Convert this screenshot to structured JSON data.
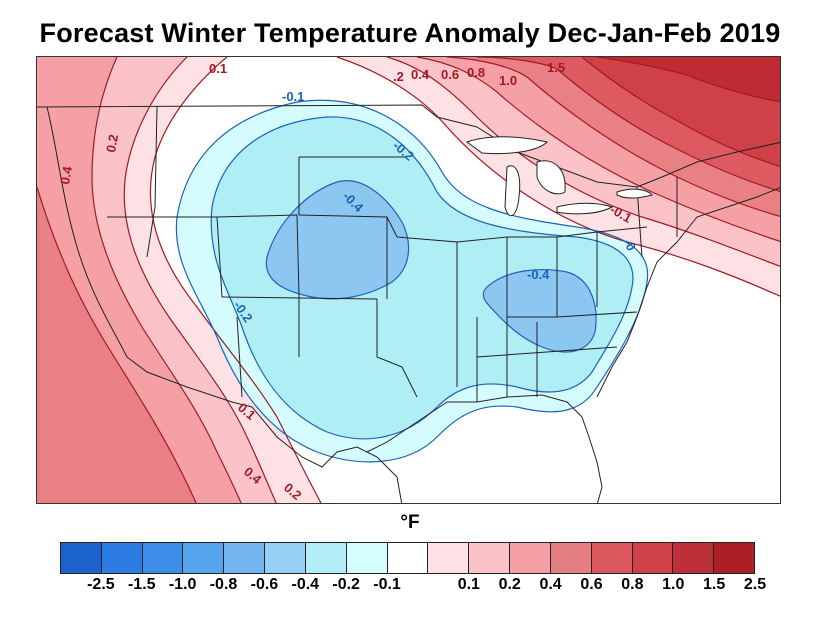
{
  "title": "Forecast Winter Temperature Anomaly Dec-Jan-Feb 2019",
  "unit_label": "°F",
  "colors": {
    "blue_1": "#d4fbfd",
    "blue_2": "#b0eef6",
    "blue_3": "#8cc7f2",
    "red_1": "#fde1e4",
    "red_2": "#fbc3c7",
    "red_3": "#f4a0a4",
    "red_4": "#e98086",
    "red_5": "#dd5a60",
    "red_6": "#cf4047",
    "red_7": "#bf2b33",
    "warm_contour": "#a11b22",
    "cool_contour": "#1c63b6"
  },
  "contour_labels": [
    {
      "text": "0.1",
      "tone": "warm"
    },
    {
      "text": ".2",
      "tone": "warm"
    },
    {
      "text": "0.4",
      "tone": "warm"
    },
    {
      "text": "0.6",
      "tone": "warm"
    },
    {
      "text": "0.8",
      "tone": "warm"
    },
    {
      "text": "1.0",
      "tone": "warm"
    },
    {
      "text": "1.5",
      "tone": "warm"
    },
    {
      "text": "0.2",
      "tone": "warm"
    },
    {
      "text": "0.4",
      "tone": "warm"
    },
    {
      "text": "-0.1",
      "tone": "cool"
    },
    {
      "text": "-0.2",
      "tone": "cool"
    },
    {
      "text": "-0.4",
      "tone": "cool"
    },
    {
      "text": "-0.2",
      "tone": "cool"
    },
    {
      "text": "-0.1",
      "tone": "warm"
    },
    {
      "text": "-0.4",
      "tone": "cool"
    },
    {
      "text": "-0",
      "tone": "cool"
    },
    {
      "text": "0.1",
      "tone": "warm"
    },
    {
      "text": "0.2",
      "tone": "warm"
    },
    {
      "text": "0.4",
      "tone": "warm"
    }
  ],
  "colorbar": {
    "swatches": [
      "#1c62cc",
      "#2c7ce4",
      "#3d8eea",
      "#55a4ee",
      "#74b6f2",
      "#95cff4",
      "#b2ecf7",
      "#d5fdfe",
      "#ffffff",
      "#fde1e4",
      "#fbc3c7",
      "#f4a0a4",
      "#e47e83",
      "#d9575d",
      "#cf4047",
      "#bd3037",
      "#ad1f25"
    ],
    "ticks": [
      "-2.5",
      "-1.5",
      "-1.0",
      "-0.8",
      "-0.6",
      "-0.4",
      "-0.2",
      "-0.1",
      "0.1",
      "0.2",
      "0.4",
      "0.6",
      "0.8",
      "1.0",
      "1.5",
      "2.5"
    ]
  }
}
